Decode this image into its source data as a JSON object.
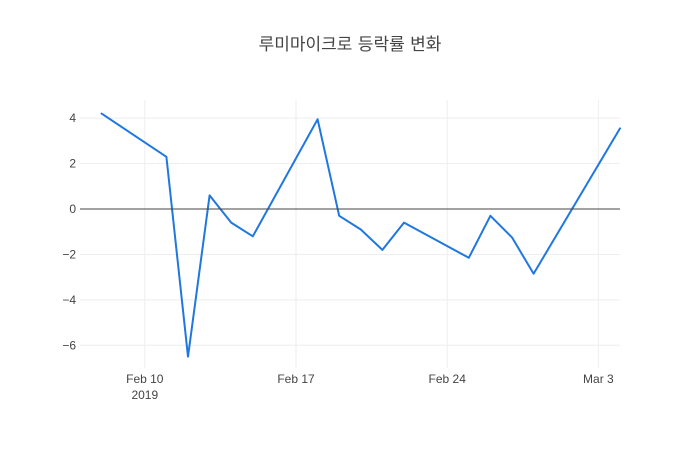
{
  "chart_data": {
    "type": "line",
    "title": "루미마이크로 등락률 변화",
    "xlabel": "",
    "ylabel": "",
    "x_range": [
      "2019-02-07",
      "2019-03-04"
    ],
    "ylim": [
      -7,
      4.8
    ],
    "x_ticks": [
      {
        "date": "2019-02-10",
        "label": "Feb 10",
        "sublabel": "2019"
      },
      {
        "date": "2019-02-17",
        "label": "Feb 17",
        "sublabel": ""
      },
      {
        "date": "2019-02-24",
        "label": "Feb 24",
        "sublabel": ""
      },
      {
        "date": "2019-03-03",
        "label": "Mar 3",
        "sublabel": ""
      }
    ],
    "y_ticks": [
      {
        "value": 4,
        "label": "4"
      },
      {
        "value": 2,
        "label": "2"
      },
      {
        "value": 0,
        "label": "0"
      },
      {
        "value": -2,
        "label": "−2"
      },
      {
        "value": -4,
        "label": "−4"
      },
      {
        "value": -6,
        "label": "−6"
      }
    ],
    "grid": true,
    "color": "#1f77e0",
    "series": [
      {
        "points": [
          {
            "x": "2019-02-08",
            "y": 4.2
          },
          {
            "x": "2019-02-11",
            "y": 2.3
          },
          {
            "x": "2019-02-12",
            "y": -6.5
          },
          {
            "x": "2019-02-13",
            "y": 0.6
          },
          {
            "x": "2019-02-14",
            "y": -0.6
          },
          {
            "x": "2019-02-15",
            "y": -1.2
          },
          {
            "x": "2019-02-18",
            "y": 3.95
          },
          {
            "x": "2019-02-19",
            "y": -0.3
          },
          {
            "x": "2019-02-20",
            "y": -0.9
          },
          {
            "x": "2019-02-21",
            "y": -1.8
          },
          {
            "x": "2019-02-22",
            "y": -0.6
          },
          {
            "x": "2019-02-25",
            "y": -2.15
          },
          {
            "x": "2019-02-26",
            "y": -0.3
          },
          {
            "x": "2019-02-27",
            "y": -1.25
          },
          {
            "x": "2019-02-28",
            "y": -2.85
          },
          {
            "x": "2019-03-04",
            "y": 3.55
          }
        ]
      }
    ]
  }
}
